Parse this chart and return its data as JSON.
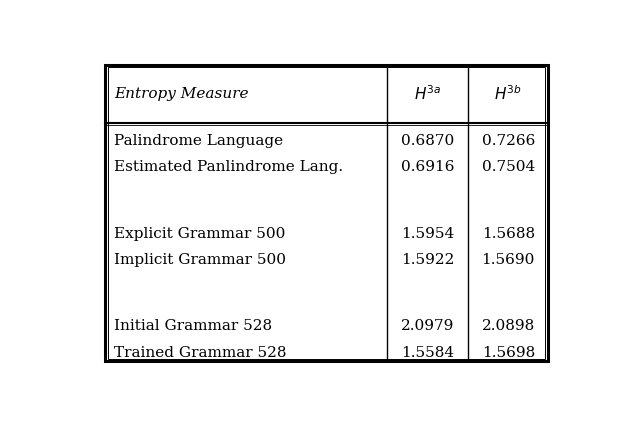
{
  "col_header": [
    "Entropy Measure",
    "$H^{3a}$",
    "$H^{3b}$"
  ],
  "row_groups": [
    [
      [
        "Palindrome Language",
        "0.6870",
        "0.7266"
      ],
      [
        "Estimated Panlindrome Lang.",
        "0.6916",
        "0.7504"
      ]
    ],
    [
      [
        "Explicit Grammar 500",
        "1.5954",
        "1.5688"
      ],
      [
        "Implicit Grammar 500",
        "1.5922",
        "1.5690"
      ]
    ],
    [
      [
        "Initial Grammar 528",
        "2.0979",
        "2.0898"
      ],
      [
        "Trained Grammar 528",
        "1.5584",
        "1.5698"
      ]
    ]
  ],
  "figsize": [
    6.28,
    4.22
  ],
  "dpi": 100,
  "bg_color": "#ffffff",
  "border_color": "#000000",
  "text_color": "#000000",
  "header_fontsize": 11,
  "body_fontsize": 11
}
